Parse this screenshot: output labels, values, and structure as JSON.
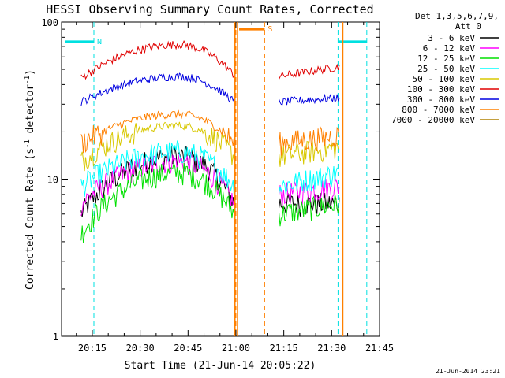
{
  "chart_data": {
    "type": "line",
    "title": "HESSI Observing Summary Count Rates, Corrected",
    "xlabel": "Start Time (21-Jun-14 20:05:22)",
    "ylabel_main": "Corrected Count Rate (s",
    "ylabel_sup1": "-1",
    "ylabel_mid": " detector",
    "ylabel_sup2": "-1",
    "ylabel_end": ")",
    "yscale": "log",
    "ylim": [
      1,
      100
    ],
    "y_ticks": [
      {
        "value": 1,
        "label": "1"
      },
      {
        "value": 10,
        "label": "10"
      },
      {
        "value": 100,
        "label": "100"
      }
    ],
    "x_ticks": [
      "20:15",
      "20:30",
      "20:45",
      "21:00",
      "21:15",
      "21:30",
      "21:45"
    ],
    "x_tick_minutes": [
      15,
      30,
      45,
      60,
      75,
      90,
      105
    ],
    "xlim_minutes": [
      5.367,
      105
    ],
    "x_reference": "20:00",
    "legend_header": [
      "Det 1,3,5,6,7,9,",
      "Att 0"
    ],
    "legend_position": "right",
    "series": [
      {
        "name": "3 - 6 keV",
        "color": "#000000"
      },
      {
        "name": "6 - 12 keV",
        "color": "#ff00ff"
      },
      {
        "name": "12 - 25 keV",
        "color": "#00e000"
      },
      {
        "name": "25 - 50 keV",
        "color": "#00ffff"
      },
      {
        "name": "50 - 100 keV",
        "color": "#d8c800"
      },
      {
        "name": "100 - 300 keV",
        "color": "#e00000"
      },
      {
        "name": "300 - 800 keV",
        "color": "#0000e0"
      },
      {
        "name": "800 - 7000 keV",
        "color": "#ff8000"
      },
      {
        "name": "7000 - 20000 keV",
        "color": "#b08000"
      }
    ],
    "series_levels": {
      "3 - 6 keV": {
        "seg1": [
          6,
          14,
          7
        ],
        "seg2": [
          7,
          7
        ]
      },
      "6 - 12 keV": {
        "seg1": [
          7,
          13,
          7
        ],
        "seg2": [
          8,
          9
        ]
      },
      "12 - 25 keV": {
        "seg1": [
          4.5,
          11,
          6
        ],
        "seg2": [
          6,
          7
        ]
      },
      "25 - 50 keV": {
        "seg1": [
          9,
          15,
          9
        ],
        "seg2": [
          9,
          11
        ]
      },
      "50 - 100 keV": {
        "seg1": [
          13,
          22,
          14
        ],
        "seg2": [
          14,
          16
        ]
      },
      "100 - 300 keV": {
        "seg1": [
          44,
          72,
          46
        ],
        "seg2": [
          45,
          52
        ]
      },
      "300 - 800 keV": {
        "seg1": [
          31,
          45,
          31
        ],
        "seg2": [
          31,
          33
        ]
      },
      "800 - 7000 keV": {
        "seg1": [
          17,
          26,
          17
        ],
        "seg2": [
          17,
          19
        ]
      }
    },
    "segments_minutes": {
      "seg1": [
        11.5,
        59.5
      ],
      "seg2": [
        73.5,
        92.5
      ]
    },
    "flags": [
      {
        "label": "N",
        "color": "#00e0e0",
        "start_min": 6.5,
        "end_min": 15.5,
        "level": 75,
        "boundary_min": [
          15.5
        ]
      },
      {
        "label": "S",
        "color": "#ff8000",
        "start_min": 61,
        "end_min": 69,
        "level": 90,
        "boundary_min": [
          60,
          69
        ]
      },
      {
        "label": "",
        "color": "#00e0e0",
        "start_min": 92,
        "end_min": 101,
        "level": 75,
        "boundary_min": [
          92,
          101
        ]
      }
    ],
    "saa_lines_minutes": [
      59.7,
      60.5,
      93.5
    ]
  },
  "footer_date": "21-Jun-2014 23:21"
}
